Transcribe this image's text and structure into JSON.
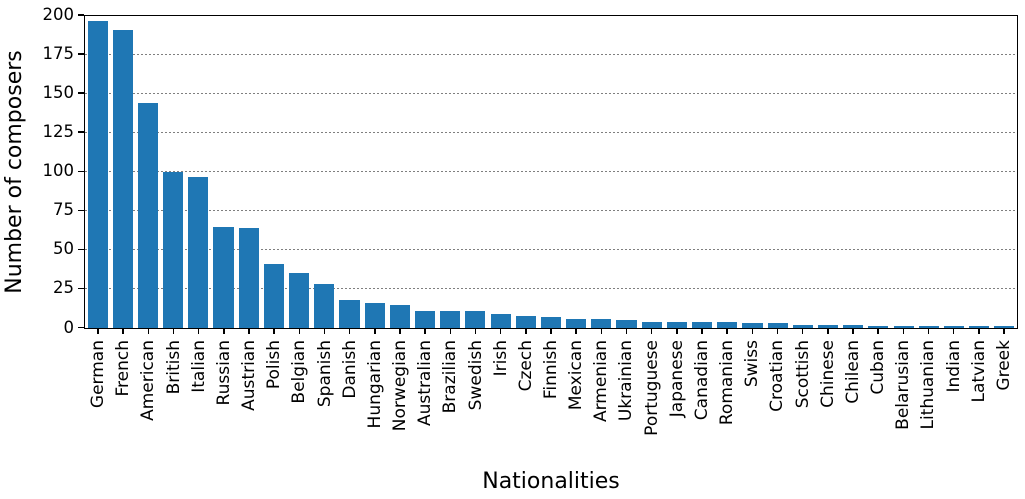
{
  "chart_data": {
    "type": "bar",
    "title": "",
    "xlabel": "Nationalities",
    "ylabel": "Number of composers",
    "categories": [
      "German",
      "French",
      "American",
      "British",
      "Italian",
      "Russian",
      "Austrian",
      "Polish",
      "Belgian",
      "Spanish",
      "Danish",
      "Hungarian",
      "Norwegian",
      "Australian",
      "Brazilian",
      "Swedish",
      "Irish",
      "Czech",
      "Finnish",
      "Mexican",
      "Armenian",
      "Ukrainian",
      "Portuguese",
      "Japanese",
      "Canadian",
      "Romanian",
      "Swiss",
      "Croatian",
      "Scottish",
      "Chinese",
      "Chilean",
      "Cuban",
      "Belarusian",
      "Lithuanian",
      "Indian",
      "Latvian",
      "Greek"
    ],
    "values": [
      197,
      191,
      144,
      100,
      97,
      65,
      64,
      41,
      35,
      28,
      18,
      16,
      15,
      11,
      11,
      11,
      9,
      8,
      7,
      6,
      6,
      5,
      4,
      4,
      4,
      4,
      3,
      3,
      2,
      2,
      2,
      1,
      1,
      1,
      1,
      1,
      1
    ],
    "ylim": [
      0,
      200
    ],
    "yticks": [
      0,
      25,
      50,
      75,
      100,
      125,
      150,
      175,
      200
    ],
    "grid": "horizontal-dotted",
    "legend": "none",
    "bar_color": "#1f77b4",
    "grid_color": "#7f7f7f",
    "axis_color": "#000000",
    "background_color": "#ffffff"
  }
}
